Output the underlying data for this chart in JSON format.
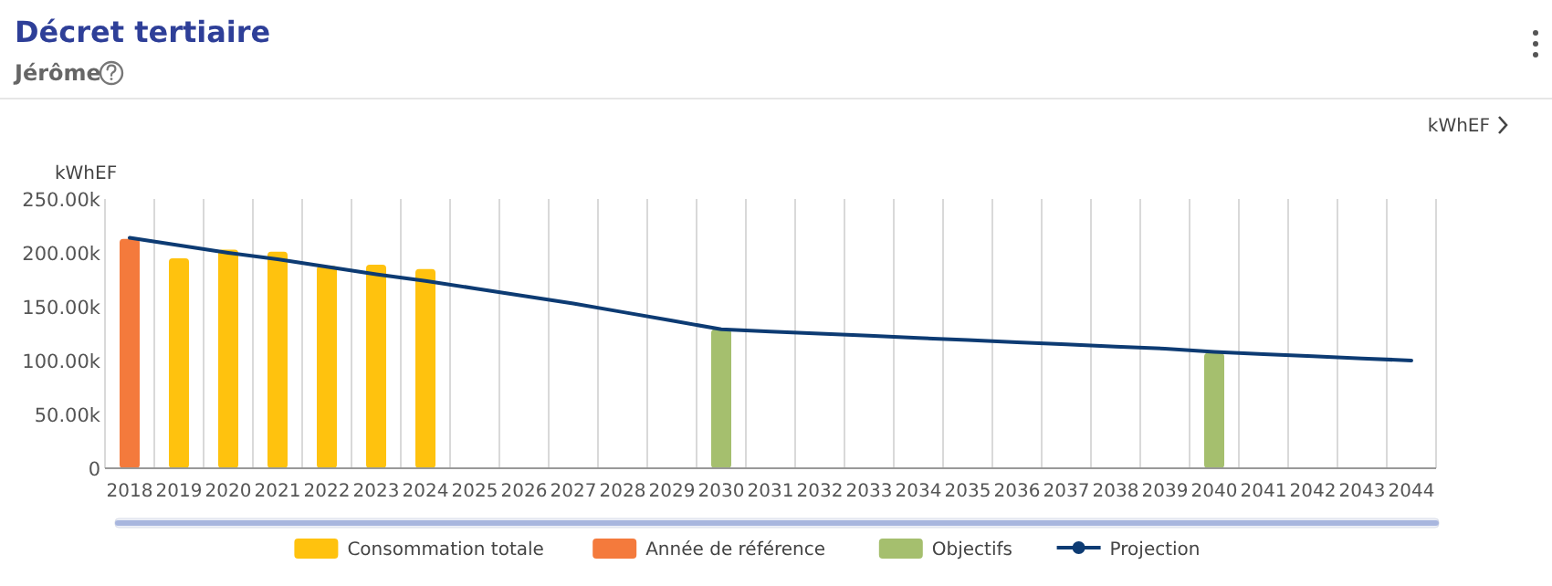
{
  "chart_data": {
    "type": "bar",
    "title": "Décret tertiaire",
    "subtitle": "Jérôme",
    "ylabel": "kWhEF",
    "annotations": [
      "kWhEF"
    ],
    "categories": [
      "2018",
      "2019",
      "2020",
      "2021",
      "2022",
      "2023",
      "2024",
      "2025",
      "2026",
      "2027",
      "2028",
      "2029",
      "2030",
      "2031",
      "2032",
      "2033",
      "2034",
      "2035",
      "2036",
      "2037",
      "2038",
      "2039",
      "2040",
      "2041",
      "2042",
      "2043",
      "2044"
    ],
    "series": [
      {
        "name": "Consommation totale",
        "color": "#ffc20e",
        "values": [
          null,
          195000,
          203000,
          201000,
          188000,
          189000,
          185000,
          null,
          null,
          null,
          null,
          null,
          null,
          null,
          null,
          null,
          null,
          null,
          null,
          null,
          null,
          null,
          null,
          null,
          null,
          null,
          null
        ]
      },
      {
        "name": "Année de référence",
        "color": "#f47a3c",
        "values": [
          213000,
          null,
          null,
          null,
          null,
          null,
          null,
          null,
          null,
          null,
          null,
          null,
          null,
          null,
          null,
          null,
          null,
          null,
          null,
          null,
          null,
          null,
          null,
          null,
          null,
          null,
          null
        ]
      },
      {
        "name": "Objectifs",
        "color": "#a5bf6e",
        "values": [
          null,
          null,
          null,
          null,
          null,
          null,
          null,
          null,
          null,
          null,
          null,
          null,
          129000,
          null,
          null,
          null,
          null,
          null,
          null,
          null,
          null,
          null,
          107000,
          null,
          null,
          null,
          null
        ]
      },
      {
        "name": "Projection",
        "color": "#0d3b73",
        "type": "line",
        "values": [
          214000,
          207000,
          200000,
          194000,
          187000,
          180000,
          174000,
          167000,
          160000,
          153000,
          145000,
          137000,
          129000,
          127000,
          125000,
          123000,
          121000,
          119000,
          117000,
          115000,
          113000,
          111000,
          108000,
          106000,
          104000,
          102000,
          100000
        ]
      }
    ],
    "ylim": [
      0,
      250000
    ],
    "yticks": [
      {
        "value": 0,
        "label": "0"
      },
      {
        "value": 50000,
        "label": "50.00k"
      },
      {
        "value": 100000,
        "label": "100.00k"
      },
      {
        "value": 150000,
        "label": "150.00k"
      },
      {
        "value": 200000,
        "label": "200.00k"
      },
      {
        "value": 250000,
        "label": "250.00k"
      }
    ],
    "grid": "x",
    "legend": "bottom",
    "marker": "none",
    "line_style": "solid"
  }
}
